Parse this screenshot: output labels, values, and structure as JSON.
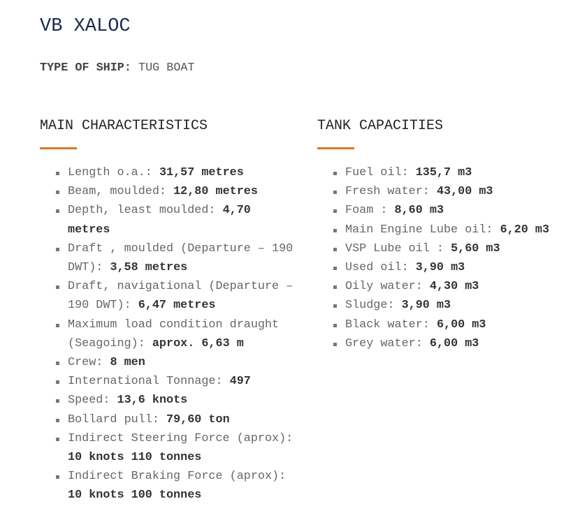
{
  "title": "VB XALOC",
  "type_of_ship": {
    "label": "TYPE OF SHIP:",
    "value": "TUG BOAT"
  },
  "main_characteristics": {
    "heading": "MAIN CHARACTERISTICS",
    "items": [
      {
        "label": "Length o.a.:",
        "value": "31,57 metres"
      },
      {
        "label": "Beam, moulded:",
        "value": "12,80 metres"
      },
      {
        "label": "Depth, least moulded:",
        "value": "4,70 metres"
      },
      {
        "label": "Draft , moulded (Departure – 190 DWT):",
        "value": "3,58 metres"
      },
      {
        "label": "Draft, navigational (Departure – 190 DWT):",
        "value": "6,47 metres"
      },
      {
        "label": "Maximum load condition draught (Seagoing):",
        "value": "aprox. 6,63 m"
      },
      {
        "label": "Crew:",
        "value": "8 men"
      },
      {
        "label": "International Tonnage:",
        "value": "497"
      },
      {
        "label": "Speed:",
        "value": "13,6 knots"
      },
      {
        "label": "Bollard pull:",
        "value": "79,60 ton"
      },
      {
        "label": "Indirect Steering Force (aprox):",
        "value": "10 knots 110 tonnes"
      },
      {
        "label": "Indirect Braking Force (aprox):",
        "value": "10 knots 100 tonnes"
      }
    ]
  },
  "tank_capacities": {
    "heading": "TANK CAPACITIES",
    "items": [
      {
        "label": "Fuel oil:",
        "value": "135,7 m3"
      },
      {
        "label": "Fresh water:",
        "value": "43,00 m3"
      },
      {
        "label": "Foam :",
        "value": "8,60 m3"
      },
      {
        "label": "Main Engine Lube oil:",
        "value": "6,20 m3"
      },
      {
        "label": "VSP Lube oil :",
        "value": "5,60 m3"
      },
      {
        "label": "Used oil:",
        "value": "3,90 m3"
      },
      {
        "label": "Oily water:",
        "value": "4,30 m3"
      },
      {
        "label": "Sludge:",
        "value": "3,90 m3"
      },
      {
        "label": "Black water:",
        "value": "6,00 m3"
      },
      {
        "label": "Grey water:",
        "value": "6,00 m3"
      }
    ]
  },
  "colors": {
    "accent_rule": "#d4792a",
    "title": "#1c2a4e"
  }
}
